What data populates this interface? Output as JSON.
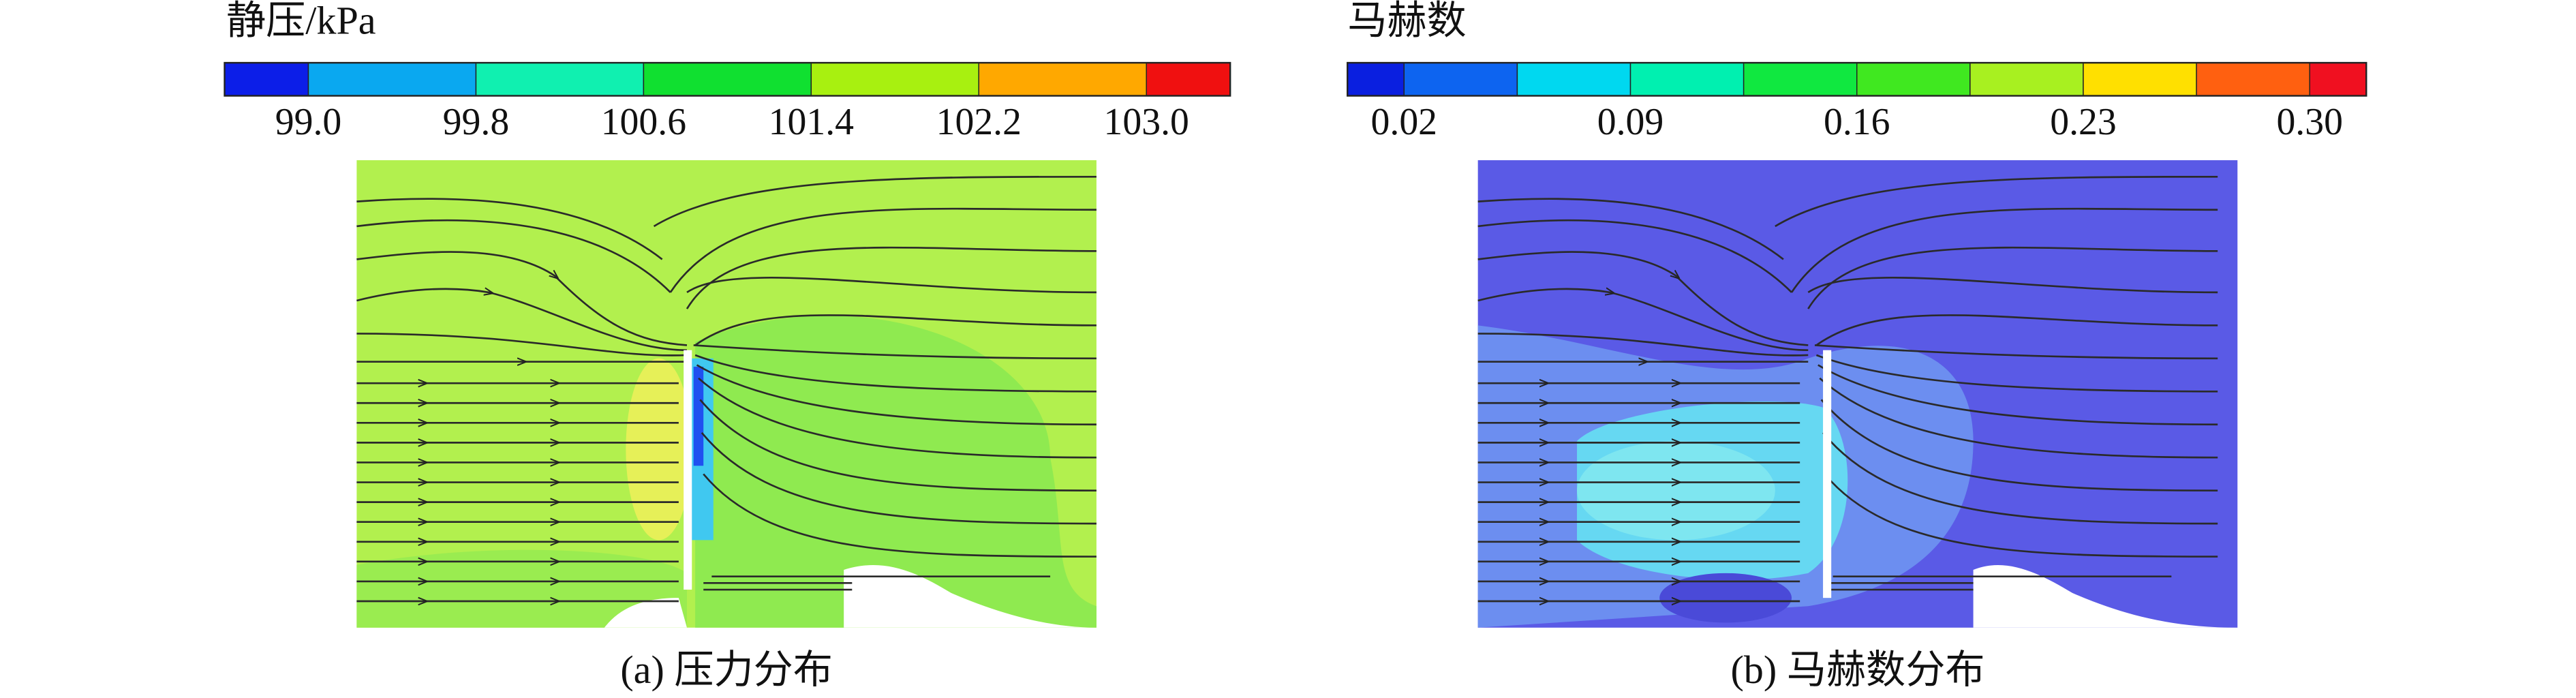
{
  "panels": [
    {
      "colorbar": {
        "title": "静压/kPa",
        "lim": [
          98.6,
          103.4
        ],
        "ticks": [
          {
            "value": 99,
            "label": "99.0"
          },
          99.8,
          100.6,
          101.4,
          102.2,
          {
            "value": 103,
            "label": "103.0"
          }
        ],
        "colors": [
          "#0c1ee8",
          "#0aa8f0",
          "#10f0b0",
          "#10e030",
          "#a8f010",
          "#ffa800",
          "#f01010"
        ]
      },
      "caption": "(a) 压力分布"
    },
    {
      "colorbar": {
        "title": "马赫数",
        "lim": [
          0.0025,
          0.3175
        ],
        "ticks": [
          0.02,
          0.09,
          0.16,
          0.23,
          {
            "value": 0.3,
            "label": "0.30"
          }
        ],
        "colors": [
          "#0a1fe0",
          "#0d64f0",
          "#00d8f0",
          "#00f0b0",
          "#10e840",
          "#40e820",
          "#a8f020",
          "#ffe000",
          "#ff6010",
          "#f01020"
        ]
      },
      "caption": "(b) 马赫数分布"
    }
  ]
}
